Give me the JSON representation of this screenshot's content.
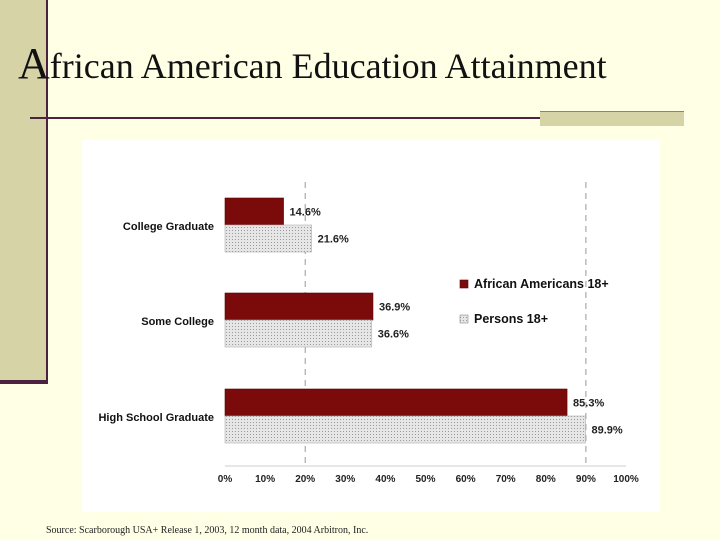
{
  "slide": {
    "title_initial": "A",
    "title_rest": "frican American Education Attainment",
    "source": "Source: Scarborough USA+ Release 1, 2003, 12 month data, 2004 Arbitron, Inc."
  },
  "colors": {
    "series_african_americans": "#7b0a0a",
    "series_persons": "#d9d9d9"
  },
  "chart_data": {
    "type": "bar",
    "orientation": "horizontal",
    "title": "",
    "categories": [
      "College Graduate",
      "Some College",
      "High School Graduate"
    ],
    "series": [
      {
        "name": "African Americans 18+",
        "values": [
          14.6,
          36.9,
          85.3
        ],
        "labels": [
          "14.6%",
          "36.9%",
          "85.3%"
        ]
      },
      {
        "name": "Persons 18+",
        "values": [
          21.6,
          36.6,
          89.9
        ],
        "labels": [
          "21.6%",
          "36.6%",
          "89.9%"
        ]
      }
    ],
    "xlim": [
      0,
      100
    ],
    "xticks": [
      "0%",
      "10%",
      "20%",
      "30%",
      "40%",
      "50%",
      "60%",
      "70%",
      "80%",
      "90%",
      "100%"
    ],
    "gridlines": [
      20,
      90
    ],
    "legend": "right"
  }
}
